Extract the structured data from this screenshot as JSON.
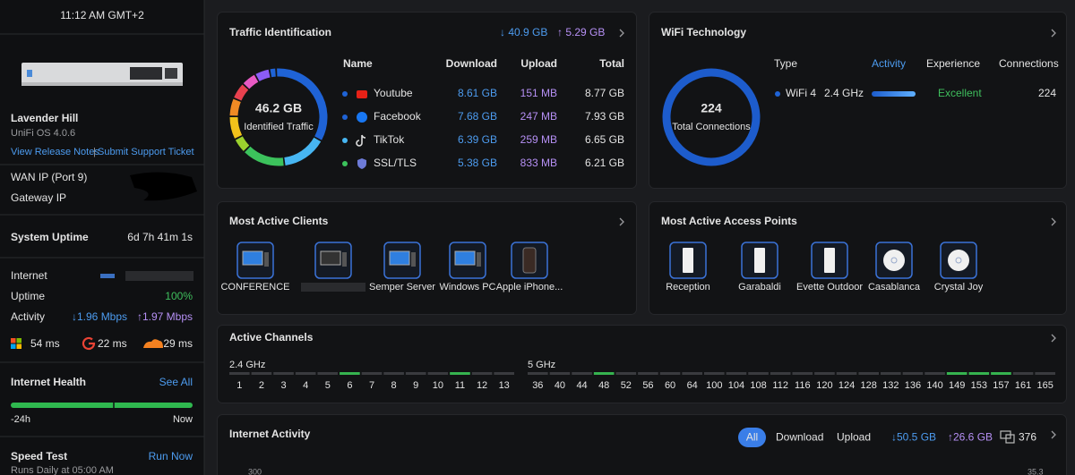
{
  "sidebar": {
    "time": "11:12 AM GMT+2",
    "device_name": "Lavender Hill",
    "os_version": "UniFi OS 4.0.6",
    "links": [
      "View Release Notes",
      "Submit Support Ticket"
    ],
    "link_separator": "|",
    "wan_ip_label": "WAN IP (Port 9)",
    "gateway_ip_label": "Gateway IP",
    "system_uptime": {
      "label": "System Uptime",
      "value": "6d 7h 41m 1s"
    },
    "internet": {
      "label": "Internet",
      "uptime_label": "Uptime",
      "uptime": "100%",
      "activity_label": "Activity",
      "download": "↓1.96 Mbps",
      "upload": "↑1.97 Mbps",
      "latency": [
        "54 ms",
        "22 ms",
        "29 ms"
      ]
    },
    "health": {
      "title": "Internet Health",
      "link": "See All",
      "start": "-24h",
      "end": "Now"
    },
    "speed_test": {
      "title": "Speed Test",
      "link": "Run Now",
      "schedule": "Runs Daily at 05:00 AM"
    }
  },
  "traffic": {
    "title": "Traffic Identification",
    "download": "↓ 40.9 GB",
    "upload": "↑ 5.29 GB",
    "total": "46.2 GB",
    "total_label": "Identified Traffic",
    "columns": [
      "Name",
      "Download",
      "Upload",
      "Total"
    ],
    "rows": [
      [
        "Youtube",
        "8.61 GB",
        "151 MB",
        "8.77 GB"
      ],
      [
        "Facebook",
        "7.68 GB",
        "247 MB",
        "7.93 GB"
      ],
      [
        "TikTok",
        "6.39 GB",
        "259 MB",
        "6.65 GB"
      ],
      [
        "SSL/TLS",
        "5.38 GB",
        "833 MB",
        "6.21 GB"
      ]
    ]
  },
  "wifi": {
    "title": "WiFi Technology",
    "total": "224",
    "total_label": "Total Connections",
    "columns": [
      "Type",
      "Activity",
      "Experience",
      "Connections"
    ],
    "rows": [
      {
        "type": "WiFi 4",
        "band": "2.4 GHz",
        "experience": "Excellent",
        "connections": "224"
      }
    ]
  },
  "clients": {
    "title": "Most Active Clients",
    "labels": [
      "CONFERENCE",
      "Semper Server",
      "Windows PC",
      "Apple iPhone..."
    ]
  },
  "access_points": {
    "title": "Most Active Access Points",
    "labels": [
      "Reception",
      "Garabaldi",
      "Evette Outdoor",
      "Casablanca",
      "Crystal Joy"
    ]
  },
  "channels": {
    "title": "Active Channels",
    "bands": [
      {
        "label": "2.4 GHz",
        "channels": [
          "1",
          "2",
          "3",
          "4",
          "5",
          "6",
          "7",
          "8",
          "9",
          "10",
          "11",
          "12",
          "13"
        ],
        "active": [
          "6",
          "11"
        ]
      },
      {
        "label": "5 GHz",
        "channels": [
          "36",
          "40",
          "44",
          "48",
          "52",
          "56",
          "60",
          "64",
          "100",
          "104",
          "108",
          "112",
          "116",
          "120",
          "124",
          "128",
          "132",
          "136",
          "140",
          "149",
          "153",
          "157",
          "161",
          "165"
        ],
        "active": [
          "48",
          "149",
          "153",
          "157"
        ]
      }
    ]
  },
  "internet_activity": {
    "title": "Internet Activity",
    "filters": [
      "All",
      "Download",
      "Upload"
    ],
    "download": "↓50.5 GB",
    "upload": "↑26.6 GB",
    "clients": "376",
    "left_axis_top": "300",
    "right_axis_top": "35.3"
  }
}
